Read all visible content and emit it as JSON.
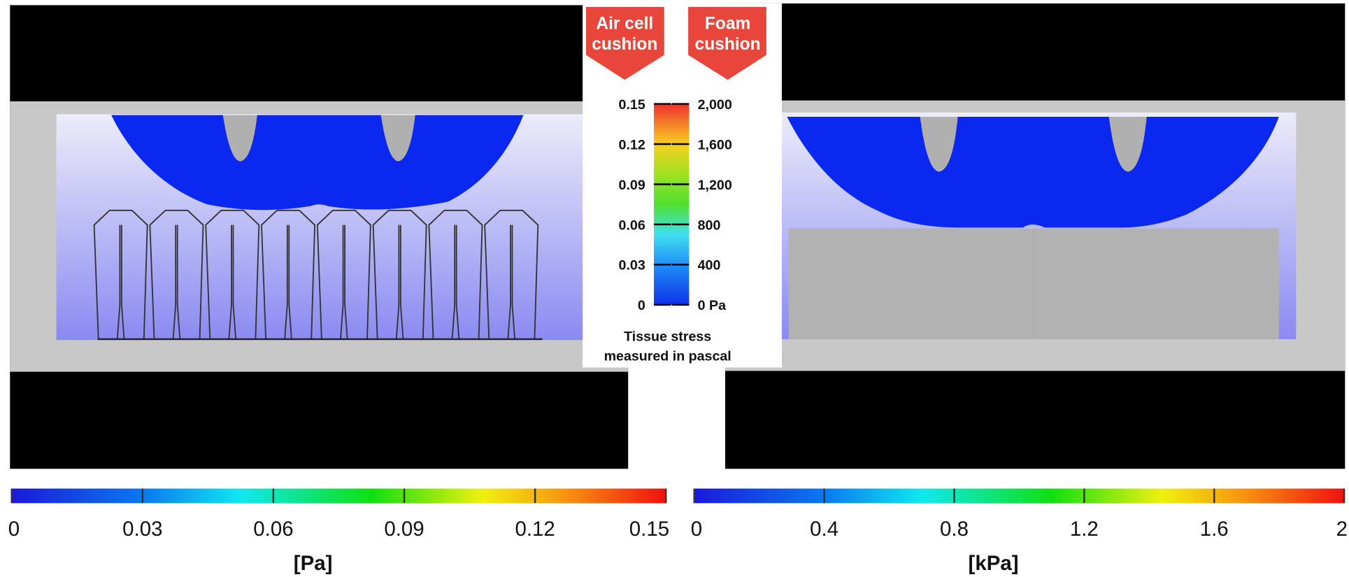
{
  "legend": {
    "left_label": [
      "Air cell",
      "cushion"
    ],
    "right_label": [
      "Foam",
      "cushion"
    ],
    "left_ticks": [
      0.15,
      0.12,
      0.09,
      0.06,
      0.03,
      0
    ],
    "right_ticks": [
      {
        "value": 2000,
        "label": "2,000"
      },
      {
        "value": 1600,
        "label": "1,600"
      },
      {
        "value": 1200,
        "label": "1,200"
      },
      {
        "value": 800,
        "label": "800"
      },
      {
        "value": 400,
        "label": "400"
      },
      {
        "value": 0,
        "label": "0 Pa"
      }
    ],
    "caption": [
      "Tissue stress",
      "measured in pascal"
    ]
  },
  "left_colorbar": {
    "ticks": [
      0,
      0.03,
      0.06,
      0.09,
      0.12,
      0.15
    ],
    "unit": "[Pa]"
  },
  "right_colorbar": {
    "ticks": [
      0,
      0.4,
      0.8,
      1.2,
      1.6,
      2
    ],
    "unit": "[kPa]"
  }
}
